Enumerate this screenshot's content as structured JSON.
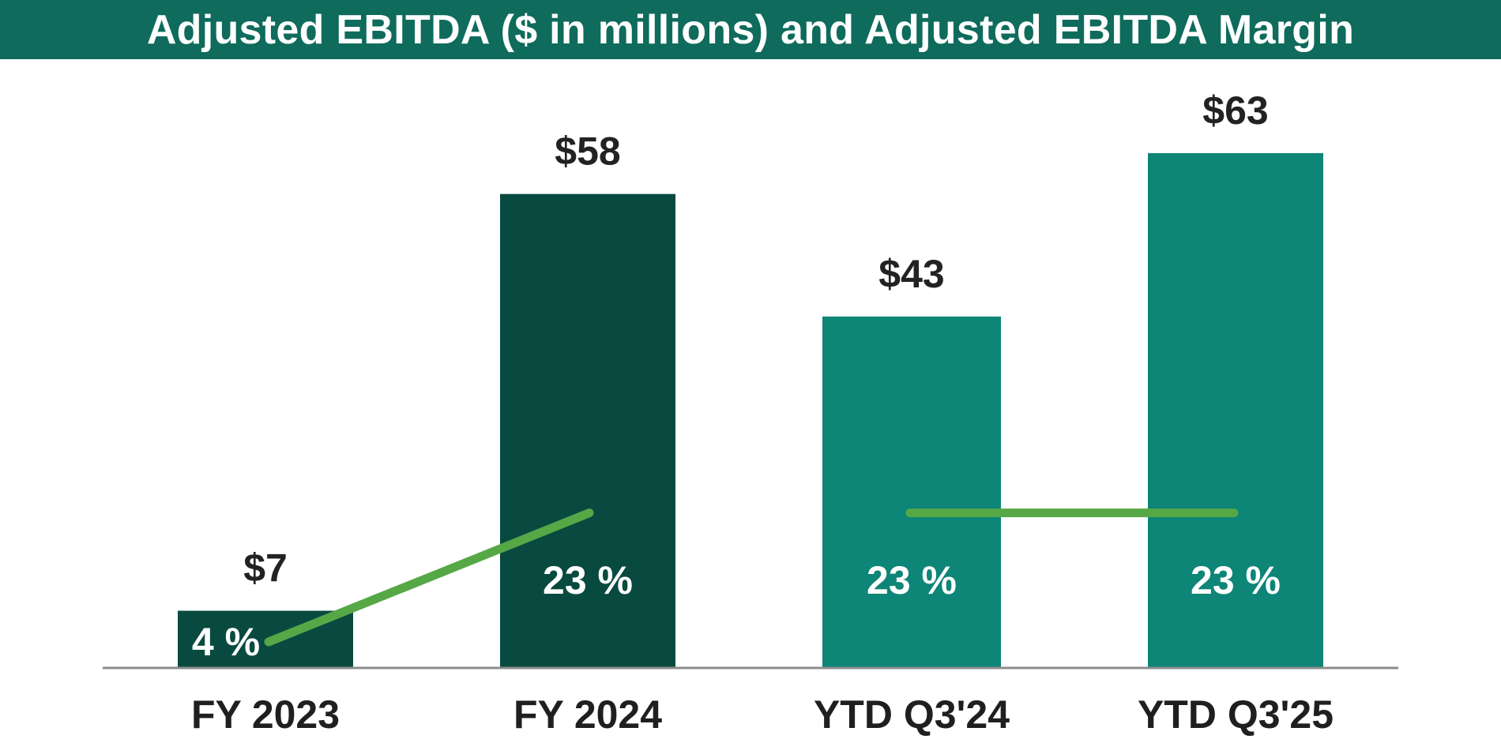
{
  "chart_data": {
    "type": "bar",
    "title": "Adjusted EBITDA ($ in millions) and Adjusted EBITDA Margin",
    "categories": [
      "FY 2023",
      "FY 2024",
      "YTD Q3'24",
      "YTD Q3'25"
    ],
    "series": [
      {
        "name": "Adjusted EBITDA ($ in millions)",
        "values": [
          7,
          58,
          43,
          63
        ],
        "labels": [
          "$7",
          "$58",
          "$43",
          "$63"
        ]
      },
      {
        "name": "Adjusted EBITDA Margin",
        "type": "line",
        "values": [
          4,
          23,
          23,
          23
        ],
        "labels": [
          "4 %",
          "23 %",
          "23 %",
          "23 %"
        ],
        "segments": [
          [
            0,
            1
          ],
          [
            2,
            3
          ]
        ]
      }
    ],
    "ylim": [
      0,
      70
    ],
    "colors": {
      "title_bg": "#0f6b5c",
      "bar_fy": "#084a40",
      "bar_ytd": "#0d8577",
      "margin_line": "#56a847",
      "axis": "#8c8c8c"
    }
  }
}
